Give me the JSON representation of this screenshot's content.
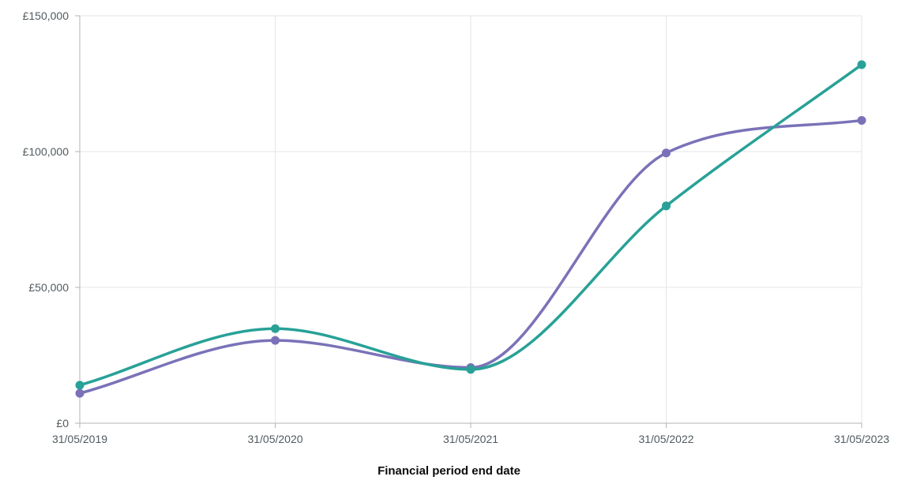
{
  "chart_data": {
    "type": "line",
    "title": "",
    "xlabel": "Financial period end date",
    "ylabel": "",
    "x": [
      "31/05/2019",
      "31/05/2020",
      "31/05/2021",
      "31/05/2022",
      "31/05/2023"
    ],
    "ylim": [
      0,
      150000
    ],
    "y_ticks": [
      0,
      50000,
      100000,
      150000
    ],
    "y_tick_labels": [
      "£0",
      "£50,000",
      "£100,000",
      "£150,000"
    ],
    "grid": true,
    "legend": false,
    "series": [
      {
        "values": [
          11000,
          30500,
          20500,
          99500,
          111500
        ],
        "color": "#7a72b8"
      },
      {
        "values": [
          14000,
          34800,
          19800,
          80000,
          132000
        ],
        "color": "#28a197"
      }
    ]
  }
}
